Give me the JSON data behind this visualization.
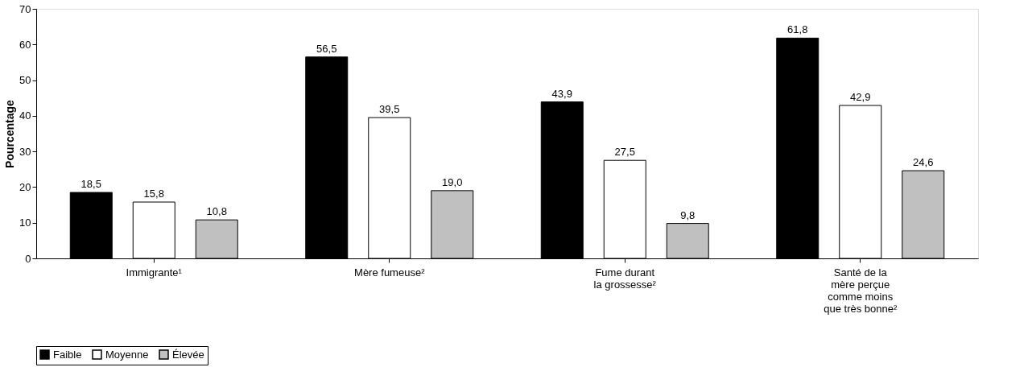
{
  "chart_data": {
    "type": "bar",
    "ylabel": "Pourcentage",
    "categories": [
      "Immigrante¹",
      "Mère fumeuse²",
      "Fume durant\nla grossesse²",
      "Santé de la\nmère perçue\ncomme moins\nque très bonne²"
    ],
    "series": [
      {
        "name": "Faible",
        "color": "#000000",
        "values": [
          18.5,
          56.5,
          43.9,
          61.8
        ],
        "value_labels": [
          "18,5",
          "56,5",
          "43,9",
          "61,8"
        ]
      },
      {
        "name": "Moyenne",
        "color": "#ffffff",
        "values": [
          15.8,
          39.5,
          27.5,
          42.9
        ],
        "value_labels": [
          "15,8",
          "39,5",
          "27,5",
          "42,9"
        ]
      },
      {
        "name": "Élevée",
        "color": "#c0c0c0",
        "values": [
          10.8,
          19.0,
          9.8,
          24.6
        ],
        "value_labels": [
          "10,8",
          "19,0",
          "9,8",
          "24,6"
        ]
      }
    ],
    "ylim": [
      0,
      70
    ],
    "yticks": [
      0,
      10,
      20,
      30,
      40,
      50,
      60,
      70
    ],
    "grid": false,
    "legend": "bottom"
  }
}
